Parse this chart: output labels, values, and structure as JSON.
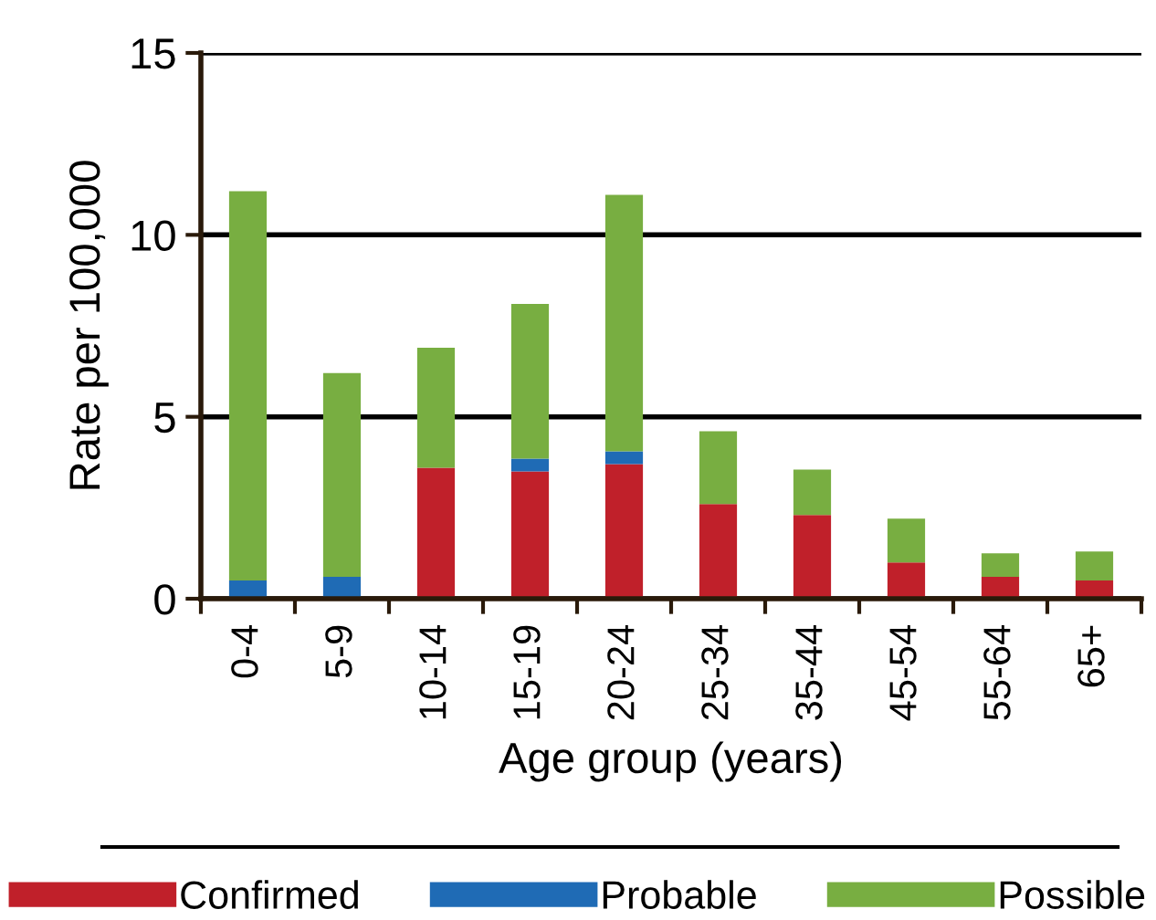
{
  "chart_data": {
    "type": "bar",
    "stacked": true,
    "xlabel": "Age group (years)",
    "ylabel": "Rate per 100,000",
    "categories": [
      "0-4",
      "5-9",
      "10-14",
      "15-19",
      "20-24",
      "25-34",
      "35-44",
      "45-54",
      "55-64",
      "65+"
    ],
    "series": [
      {
        "name": "Confirmed",
        "color": "#c0202a",
        "values": [
          0,
          0,
          3.6,
          3.5,
          3.7,
          2.6,
          2.3,
          1.0,
          0.6,
          0.5
        ]
      },
      {
        "name": "Probable",
        "color": "#1f6bb5",
        "values": [
          0.5,
          0.6,
          0,
          0.35,
          0.35,
          0,
          0,
          0,
          0,
          0
        ]
      },
      {
        "name": "Possible",
        "color": "#78ae41",
        "values": [
          10.7,
          5.6,
          3.3,
          4.25,
          7.05,
          2.0,
          1.25,
          1.2,
          0.65,
          0.8
        ]
      }
    ],
    "ylim": [
      0,
      15
    ],
    "yticks": [
      0,
      5,
      10,
      15
    ],
    "grid": "y",
    "legend": "bottom"
  }
}
